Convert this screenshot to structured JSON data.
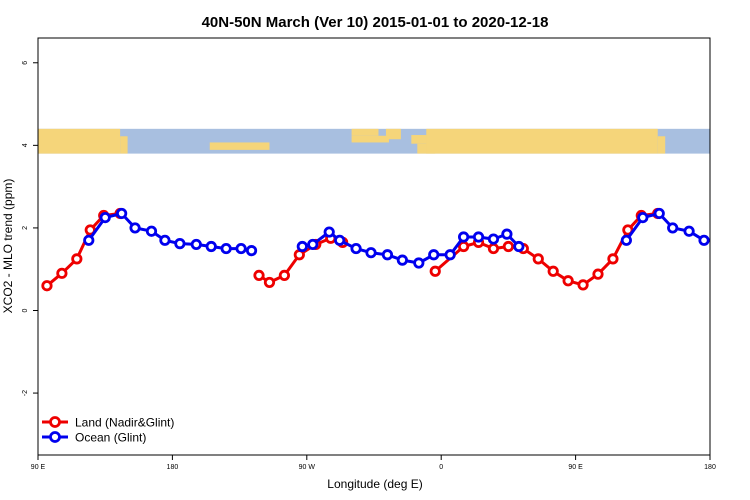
{
  "chart_data": {
    "type": "line",
    "title": "40N-50N March (Ver 10)   2015-01-01 to 2020-12-18",
    "xlabel": "Longitude (deg E)",
    "ylabel": "XCO2 - MLO trend (ppm)",
    "xlim": [
      90,
      540
    ],
    "ylim": [
      -3.5,
      6.6
    ],
    "x_ticks": [
      {
        "value": 90,
        "label": "90 E"
      },
      {
        "value": 180,
        "label": "180"
      },
      {
        "value": 270,
        "label": "90 W"
      },
      {
        "value": 360,
        "label": "0"
      },
      {
        "value": 450,
        "label": "90 E"
      },
      {
        "value": 540,
        "label": "180"
      }
    ],
    "y_ticks": [
      {
        "value": -2,
        "label": "-2"
      },
      {
        "value": 0,
        "label": "0"
      },
      {
        "value": 2,
        "label": "2"
      },
      {
        "value": 4,
        "label": "4"
      },
      {
        "value": 6,
        "label": "6"
      }
    ],
    "legend_position": "bottom-left",
    "map_strip": {
      "y_range": [
        3.8,
        4.4
      ],
      "land_color": "#F5D57A",
      "ocean_color": "#A8BFE0"
    },
    "series": [
      {
        "name": "Land (Nadir&Glint)",
        "color": "#EE0000",
        "segments": [
          [
            [
              96,
              0.6
            ],
            [
              106,
              0.9
            ],
            [
              116,
              1.25
            ],
            [
              125,
              1.95
            ],
            [
              134,
              2.3
            ],
            [
              145,
              2.35
            ]
          ],
          [
            [
              238,
              0.85
            ],
            [
              245,
              0.68
            ],
            [
              255,
              0.85
            ],
            [
              265,
              1.35
            ],
            [
              276,
              1.6
            ],
            [
              286,
              1.75
            ],
            [
              294,
              1.65
            ]
          ],
          [
            [
              356,
              0.95
            ],
            [
              375,
              1.55
            ],
            [
              385,
              1.65
            ],
            [
              395,
              1.5
            ],
            [
              405,
              1.55
            ],
            [
              415,
              1.5
            ],
            [
              425,
              1.25
            ],
            [
              435,
              0.95
            ],
            [
              445,
              0.72
            ],
            [
              455,
              0.62
            ],
            [
              465,
              0.88
            ],
            [
              475,
              1.25
            ],
            [
              485,
              1.95
            ],
            [
              494,
              2.3
            ],
            [
              505,
              2.35
            ]
          ]
        ]
      },
      {
        "name": "Ocean (Glint)",
        "color": "#0000EE",
        "segments": [
          [
            [
              124,
              1.7
            ],
            [
              135,
              2.25
            ],
            [
              146,
              2.35
            ],
            [
              155,
              2.0
            ],
            [
              166,
              1.92
            ],
            [
              175,
              1.7
            ],
            [
              185,
              1.62
            ],
            [
              196,
              1.6
            ],
            [
              206,
              1.55
            ],
            [
              216,
              1.5
            ],
            [
              226,
              1.5
            ],
            [
              233,
              1.45
            ]
          ],
          [
            [
              267,
              1.55
            ],
            [
              274,
              1.6
            ],
            [
              285,
              1.9
            ],
            [
              292,
              1.7
            ],
            [
              303,
              1.5
            ],
            [
              313,
              1.4
            ],
            [
              324,
              1.35
            ],
            [
              334,
              1.22
            ],
            [
              345,
              1.15
            ],
            [
              355,
              1.35
            ],
            [
              366,
              1.35
            ],
            [
              375,
              1.78
            ],
            [
              385,
              1.78
            ],
            [
              395,
              1.73
            ],
            [
              404,
              1.85
            ],
            [
              412,
              1.55
            ]
          ],
          [
            [
              484,
              1.7
            ],
            [
              495,
              2.25
            ],
            [
              506,
              2.35
            ],
            [
              515,
              2.0
            ],
            [
              526,
              1.92
            ],
            [
              536,
              1.7
            ]
          ]
        ]
      }
    ]
  }
}
